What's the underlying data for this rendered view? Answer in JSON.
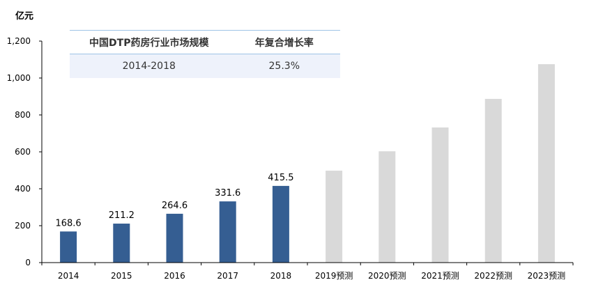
{
  "chart_data": {
    "type": "bar",
    "unit": "亿元",
    "categories": [
      "2014",
      "2015",
      "2016",
      "2017",
      "2018",
      "2019预测",
      "2020预测",
      "2021预测",
      "2022预测",
      "2023预测"
    ],
    "values": [
      168.6,
      211.2,
      264.6,
      331.6,
      415.5,
      498,
      603,
      732,
      887,
      1075
    ],
    "value_labels": [
      "168.6",
      "211.2",
      "264.6",
      "331.6",
      "415.5",
      "",
      "",
      "",
      "",
      ""
    ],
    "forecast_from_index": 5,
    "ylim": [
      0,
      1200
    ],
    "yticks": [
      0,
      200,
      400,
      600,
      800,
      1000,
      1200
    ],
    "ytick_labels": [
      "0",
      "200",
      "400",
      "600",
      "800",
      "1,000",
      "1,200"
    ],
    "colors": {
      "actual": "#355e92",
      "forecast": "#d9d9d9"
    },
    "grid": false,
    "legend": "none"
  },
  "summary_table": {
    "headers": [
      "中国DTP药房行业市场规模",
      "年复合增长率"
    ],
    "row": [
      "2014-2018",
      "25.3%"
    ]
  }
}
